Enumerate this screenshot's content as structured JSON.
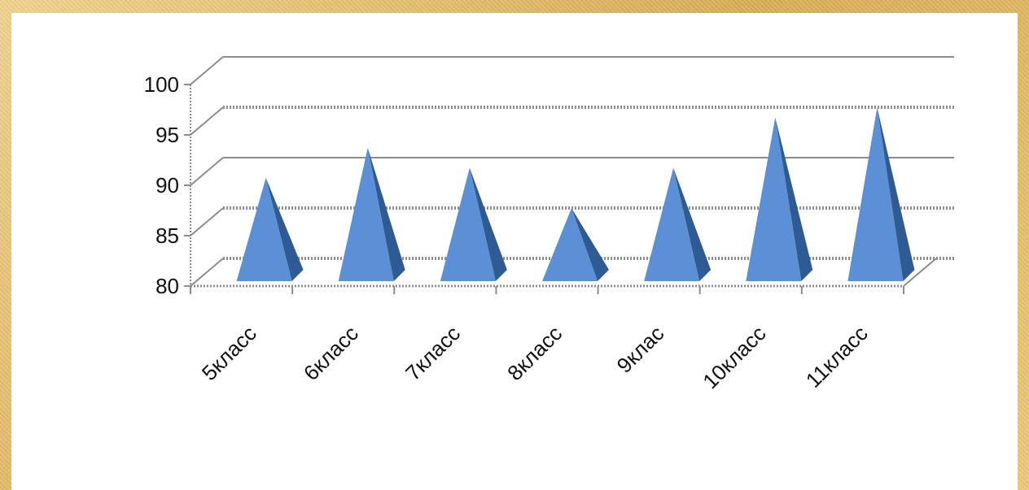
{
  "chart_data": {
    "type": "bar",
    "bar_shape": "pyramid",
    "view": "3d",
    "categories": [
      "5класс",
      "6класс",
      "7класс",
      "8класс",
      "9клас",
      "10класс",
      "11класс"
    ],
    "values": [
      89.5,
      92.5,
      90.5,
      86.5,
      90.5,
      95.5,
      96.5
    ],
    "ylim": [
      80,
      100
    ],
    "yticks": [
      "80",
      "85",
      "90",
      "95",
      "100"
    ],
    "grid": true,
    "title": "",
    "xlabel": "",
    "ylabel": "",
    "colors": {
      "bar_front": "#5b8fd6",
      "bar_side": "#2f5b94",
      "grid": "#8c8c8c",
      "floor_grid": "#a6a6a6",
      "axis": "#8c8c8c",
      "frame_bg": "#e3bd6a"
    }
  }
}
